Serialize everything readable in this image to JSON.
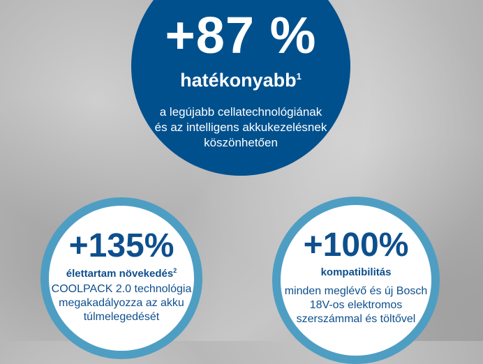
{
  "main": {
    "value": "+87 %",
    "label": "hatékonyabb",
    "footnote": "1",
    "description": "a legújabb cellatechnológiának és az intelligens akkukezelésnek köszönhetően",
    "color": "#00508e"
  },
  "lifetime": {
    "value": "+135%",
    "label": "élettartam növekedés",
    "footnote": "2",
    "description": "COOLPACK 2.0 technológia megakadályozza az akku túlmelegedését",
    "ring_color": "#4e9ec3"
  },
  "compat": {
    "value": "+100%",
    "label": "kompatibilitás",
    "description": "minden meglévő és új Bosch 18V-os elektromos szerszámmal és töltővel"
  }
}
